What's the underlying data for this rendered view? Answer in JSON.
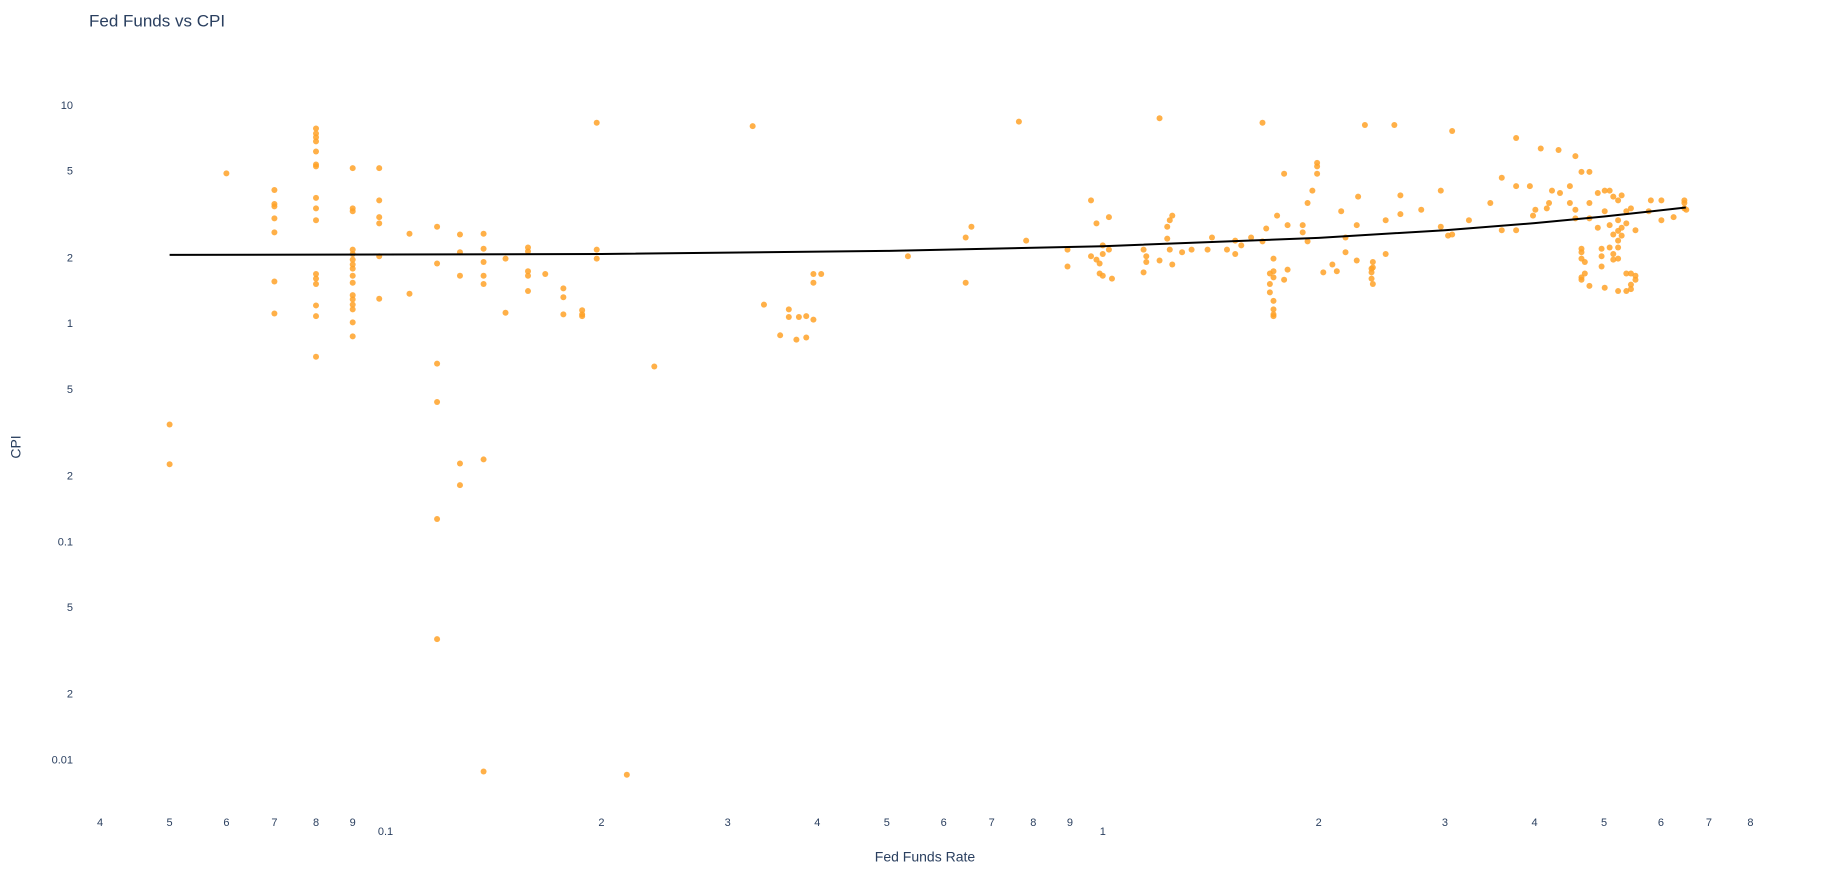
{
  "chart_data": {
    "type": "scatter",
    "title": "Fed Funds vs CPI",
    "x_label": "Fed Funds Rate",
    "y_label": "CPI",
    "xscale": "log",
    "yscale": "log",
    "grid": false,
    "xlim": [
      0.0386,
      10
    ],
    "ylim": [
      0.00638,
      14.5
    ],
    "xticks": [
      {
        "value": 0.04,
        "label": "4"
      },
      {
        "value": 0.05,
        "label": "5"
      },
      {
        "value": 0.06,
        "label": "6"
      },
      {
        "value": 0.07,
        "label": "7"
      },
      {
        "value": 0.08,
        "label": "8"
      },
      {
        "value": 0.09,
        "label": "9"
      },
      0.1,
      {
        "value": 0.2,
        "label": "2"
      },
      {
        "value": 0.3,
        "label": "3"
      },
      {
        "value": 0.4,
        "label": "4"
      },
      {
        "value": 0.5,
        "label": "5"
      },
      {
        "value": 0.6,
        "label": "6"
      },
      {
        "value": 0.7,
        "label": "7"
      },
      {
        "value": 0.8,
        "label": "8"
      },
      {
        "value": 0.9,
        "label": "9"
      },
      1,
      2,
      3,
      4,
      5,
      6,
      7,
      8
    ],
    "yticks": [
      0.01,
      {
        "value": 0.02,
        "label": "2"
      },
      {
        "value": 0.05,
        "label": "5"
      },
      0.1,
      {
        "value": 0.2,
        "label": "2"
      },
      {
        "value": 0.5,
        "label": "5"
      },
      1,
      2,
      5,
      10
    ],
    "series": [
      {
        "type": "scatter",
        "color": "#ffa228",
        "x": [
          0.05,
          0.05,
          0.06,
          0.07,
          0.07,
          0.07,
          0.07,
          0.07,
          0.07,
          0.07,
          0.08,
          0.08,
          0.08,
          0.08,
          0.08,
          0.08,
          0.08,
          0.08,
          0.08,
          0.08,
          0.08,
          0.08,
          0.08,
          0.08,
          0.08,
          0.08,
          0.09,
          0.09,
          0.09,
          0.09,
          0.09,
          0.09,
          0.09,
          0.09,
          0.09,
          0.09,
          0.09,
          0.09,
          0.09,
          0.09,
          0.09,
          0.09,
          0.098,
          0.098,
          0.098,
          0.098,
          0.098,
          0.098,
          0.108,
          0.108,
          0.118,
          0.118,
          0.118,
          0.118,
          0.118,
          0.118,
          0.127,
          0.127,
          0.127,
          0.127,
          0.127,
          0.137,
          0.137,
          0.137,
          0.137,
          0.137,
          0.137,
          0.137,
          0.147,
          0.147,
          0.158,
          0.158,
          0.158,
          0.158,
          0.158,
          0.167,
          0.177,
          0.177,
          0.177,
          0.188,
          0.188,
          0.188,
          0.197,
          0.197,
          0.197,
          0.217,
          0.237,
          0.325,
          0.337,
          0.355,
          0.365,
          0.365,
          0.374,
          0.377,
          0.386,
          0.386,
          0.395,
          0.395,
          0.395,
          0.405,
          0.535,
          0.644,
          0.644,
          0.656,
          0.764,
          0.782,
          0.893,
          0.893,
          0.963,
          0.963,
          0.98,
          0.98,
          0.99,
          0.99,
          1.0,
          1.0,
          1.0,
          1.02,
          1.02,
          1.03,
          1.14,
          1.14,
          1.15,
          1.15,
          1.2,
          1.2,
          1.23,
          1.23,
          1.24,
          1.24,
          1.25,
          1.25,
          1.29,
          1.33,
          1.4,
          1.42,
          1.49,
          1.53,
          1.53,
          1.56,
          1.61,
          1.67,
          1.67,
          1.69,
          1.71,
          1.71,
          1.71,
          1.73,
          1.73,
          1.73,
          1.73,
          1.73,
          1.73,
          1.73,
          1.75,
          1.79,
          1.79,
          1.81,
          1.81,
          1.9,
          1.9,
          1.93,
          1.93,
          1.96,
          1.99,
          1.99,
          1.99,
          2.03,
          2.09,
          2.12,
          2.15,
          2.18,
          2.18,
          2.26,
          2.26,
          2.27,
          2.32,
          2.37,
          2.37,
          2.37,
          2.38,
          2.38,
          2.38,
          2.48,
          2.48,
          2.55,
          2.6,
          2.6,
          2.78,
          2.96,
          2.96,
          3.03,
          3.07,
          3.07,
          3.24,
          3.47,
          3.6,
          3.6,
          3.77,
          3.77,
          3.77,
          3.94,
          3.98,
          4.01,
          4.08,
          4.16,
          4.19,
          4.23,
          4.32,
          4.34,
          4.48,
          4.48,
          4.56,
          4.56,
          4.56,
          4.65,
          4.65,
          4.65,
          4.65,
          4.65,
          4.65,
          4.7,
          4.7,
          4.77,
          4.77,
          4.77,
          4.77,
          4.9,
          4.9,
          4.96,
          4.96,
          4.96,
          5.01,
          5.01,
          5.01,
          5.09,
          5.09,
          5.09,
          5.15,
          5.15,
          5.15,
          5.15,
          5.23,
          5.23,
          5.23,
          5.23,
          5.23,
          5.23,
          5.23,
          5.29,
          5.29,
          5.29,
          5.37,
          5.37,
          5.37,
          5.37,
          5.45,
          5.45,
          5.45,
          5.45,
          5.53,
          5.53,
          5.53,
          5.77,
          5.81,
          6.01,
          6.01,
          6.25,
          6.47,
          6.47,
          6.47,
          6.51
        ],
        "values": [
          0.347,
          0.228,
          4.92,
          4.13,
          3.56,
          3.47,
          3.06,
          2.64,
          1.57,
          1.12,
          7.9,
          7.5,
          7.2,
          6.9,
          6.2,
          5.4,
          5.3,
          3.8,
          3.4,
          3.0,
          1.7,
          1.62,
          1.53,
          1.22,
          1.09,
          0.71,
          5.2,
          3.4,
          3.3,
          2.2,
          2.1,
          1.98,
          1.88,
          1.8,
          1.67,
          1.55,
          1.36,
          1.3,
          1.23,
          1.17,
          1.02,
          0.88,
          5.2,
          3.7,
          3.1,
          2.9,
          2.05,
          1.31,
          2.6,
          1.38,
          2.8,
          1.9,
          0.66,
          0.44,
          0.128,
          0.036,
          2.58,
          2.14,
          1.67,
          0.23,
          0.183,
          2.6,
          2.22,
          1.93,
          1.67,
          1.53,
          0.24,
          0.0089,
          2.0,
          1.13,
          2.25,
          2.16,
          1.75,
          1.67,
          1.42,
          1.7,
          1.46,
          1.33,
          1.11,
          1.16,
          1.11,
          1.09,
          8.4,
          2.2,
          2.0,
          0.0086,
          0.64,
          8.1,
          1.23,
          0.89,
          1.17,
          1.08,
          0.85,
          1.08,
          1.09,
          0.87,
          1.05,
          1.55,
          1.7,
          1.7,
          2.05,
          2.5,
          1.55,
          2.8,
          8.5,
          2.42,
          2.2,
          1.84,
          3.7,
          2.05,
          1.98,
          2.9,
          1.9,
          1.71,
          2.3,
          2.1,
          1.67,
          3.1,
          2.2,
          1.62,
          1.73,
          2.2,
          1.93,
          2.05,
          8.8,
          1.96,
          2.47,
          2.8,
          3.0,
          2.2,
          1.88,
          3.15,
          2.14,
          2.2,
          2.2,
          2.5,
          2.2,
          2.1,
          2.42,
          2.3,
          2.5,
          8.4,
          2.4,
          2.75,
          1.71,
          1.53,
          1.4,
          2.0,
          1.28,
          1.17,
          1.11,
          1.09,
          1.75,
          1.64,
          3.15,
          4.9,
          1.6,
          1.78,
          2.85,
          2.85,
          2.64,
          3.6,
          2.4,
          4.1,
          4.9,
          5.3,
          5.5,
          1.73,
          1.88,
          1.75,
          3.3,
          2.14,
          2.5,
          2.85,
          1.96,
          3.85,
          8.2,
          1.62,
          1.73,
          1.8,
          1.53,
          1.82,
          1.93,
          2.1,
          3.0,
          8.2,
          3.9,
          3.2,
          3.35,
          4.1,
          2.8,
          2.55,
          7.7,
          2.58,
          3.0,
          3.6,
          4.7,
          2.7,
          7.15,
          4.3,
          2.7,
          4.3,
          3.15,
          3.35,
          6.4,
          3.4,
          3.6,
          4.1,
          6.3,
          4.0,
          4.3,
          3.6,
          5.9,
          3.35,
          3.06,
          5.0,
          2.22,
          2.14,
          2.0,
          1.64,
          1.6,
          1.93,
          1.71,
          3.6,
          5.0,
          3.06,
          1.5,
          4.0,
          2.77,
          2.22,
          2.05,
          1.84,
          4.1,
          1.47,
          3.3,
          4.1,
          2.85,
          2.25,
          3.85,
          2.58,
          2.1,
          1.98,
          3.7,
          3.0,
          2.68,
          2.42,
          2.25,
          2.0,
          1.42,
          3.9,
          2.77,
          2.55,
          3.3,
          2.9,
          1.71,
          1.42,
          3.4,
          1.52,
          1.45,
          1.71,
          2.7,
          1.67,
          1.6,
          3.3,
          3.7,
          3.7,
          3.0,
          3.1,
          3.7,
          3.4,
          3.6,
          3.35
        ]
      },
      {
        "type": "line",
        "color": "#000000",
        "x": [
          0.05,
          0.1,
          0.2,
          0.5,
          1,
          2,
          3,
          4,
          5,
          6.5
        ],
        "values": [
          2.08,
          2.09,
          2.1,
          2.17,
          2.28,
          2.49,
          2.7,
          2.91,
          3.12,
          3.43
        ]
      }
    ]
  }
}
